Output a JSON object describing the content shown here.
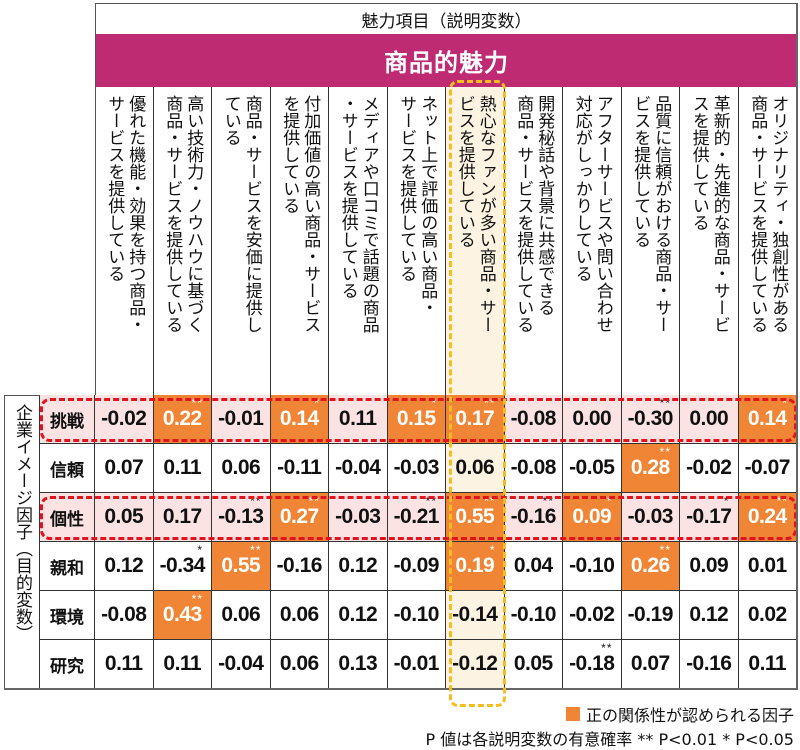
{
  "header": {
    "title": "魅力項目（説明変数）",
    "category": "商品的魅力"
  },
  "row_group_label": "企業イメージ因子（目的変数）",
  "columns": [
    "優れた機能・効果を持つ商品・サービスを提供している",
    "高い技術力・ノウハウに基づく商品・サービスを提供している",
    "商品・サービスを安価に提供している",
    "付加価値の高い商品・サービスを提供している",
    "メディアや口コミで話題の商品・サービスを提供している",
    "ネット上で評価の高い商品・サービスを提供している",
    "熱心なファンが多い商品・サービスを提供している",
    "開発秘話や背景に共感できる商品・サービスを提供している",
    "アフターサービスや問い合わせ対応がしっかりしている",
    "品質に信頼がおける商品・サービスを提供している",
    "革新的・先進的な商品・サービスを提供している",
    "オリジナリティ・独創性がある商品・サービスを提供している"
  ],
  "columns_vertical": [
    "優れた機能・効果を持つ商品・\nサービスを提供している",
    "高い技術力・ノウハウに基づく\n商品・サービスを提供している",
    "商品・サービスを安価に提供し\nている",
    "付加価値の高い商品・サービス\nを提供している",
    "メディアや口コミで話題の商品\n・サービスを提供している",
    "ネット上で評価の高い商品・\nサービスを提供している",
    "熱心なファンが多い商品・サー\nビスを提供している",
    "開発秘話や背景に共感できる\n商品・サービスを提供している",
    "アフターサービスや問い合わせ\n対応がしっかりしている",
    "品質に信頼がおける商品・サー\nビスを提供している",
    "革新的・先進的な商品・サービ\nスを提供している",
    "オリジナリティ・独創性がある\n商品・サービスを提供している"
  ],
  "rows": [
    {
      "label": "挑戦",
      "highlighted": true,
      "values": [
        "-0.02",
        "0.22",
        "-0.01",
        "0.14",
        "0.11",
        "0.15",
        "0.17",
        "-0.08",
        "0.00",
        "-0.30",
        "0.00",
        "0.14"
      ],
      "sig": [
        "",
        "**",
        "",
        "*",
        "",
        "*",
        "**",
        "",
        "",
        "**",
        "",
        "*"
      ],
      "positive": [
        false,
        true,
        false,
        true,
        false,
        true,
        true,
        false,
        false,
        false,
        false,
        true
      ]
    },
    {
      "label": "信頼",
      "highlighted": false,
      "values": [
        "0.07",
        "0.11",
        "0.06",
        "-0.11",
        "-0.04",
        "-0.03",
        "0.06",
        "-0.08",
        "-0.05",
        "0.28",
        "-0.02",
        "-0.07"
      ],
      "sig": [
        "",
        "",
        "",
        "",
        "",
        "",
        "",
        "",
        "",
        "**",
        "",
        ""
      ],
      "positive": [
        false,
        false,
        false,
        false,
        false,
        false,
        false,
        false,
        false,
        true,
        false,
        false
      ]
    },
    {
      "label": "個性",
      "highlighted": true,
      "values": [
        "0.05",
        "0.17",
        "-0.13",
        "0.27",
        "-0.03",
        "-0.21",
        "0.55",
        "-0.16",
        "0.09",
        "-0.03",
        "-0.17",
        "0.24"
      ],
      "sig": [
        "",
        "",
        "**",
        "**",
        "",
        "**",
        "**",
        "**",
        "*",
        "",
        "*",
        "**"
      ],
      "positive": [
        false,
        false,
        false,
        true,
        false,
        false,
        true,
        false,
        true,
        false,
        false,
        true
      ]
    },
    {
      "label": "親和",
      "highlighted": false,
      "values": [
        "0.12",
        "-0.34",
        "0.55",
        "-0.16",
        "0.12",
        "-0.09",
        "0.19",
        "0.04",
        "-0.10",
        "0.26",
        "0.09",
        "0.01"
      ],
      "sig": [
        "",
        "*",
        "**",
        "",
        "",
        "",
        "*",
        "",
        "",
        "**",
        "",
        ""
      ],
      "positive": [
        false,
        false,
        true,
        false,
        false,
        false,
        true,
        false,
        false,
        true,
        false,
        false
      ]
    },
    {
      "label": "環境",
      "highlighted": false,
      "values": [
        "-0.08",
        "0.43",
        "0.06",
        "0.06",
        "0.12",
        "-0.10",
        "-0.14",
        "-0.10",
        "-0.02",
        "-0.19",
        "0.12",
        "0.02"
      ],
      "sig": [
        "",
        "**",
        "",
        "",
        "",
        "",
        "",
        "",
        "",
        "",
        "",
        ""
      ],
      "positive": [
        false,
        true,
        false,
        false,
        false,
        false,
        false,
        false,
        false,
        false,
        false,
        false
      ]
    },
    {
      "label": "研究",
      "highlighted": false,
      "values": [
        "0.11",
        "0.11",
        "-0.04",
        "0.06",
        "0.13",
        "-0.01",
        "-0.12",
        "0.05",
        "-0.18",
        "0.07",
        "-0.16",
        "0.11"
      ],
      "sig": [
        "",
        "",
        "",
        "",
        "",
        "",
        "",
        "",
        "**",
        "",
        "",
        ""
      ],
      "positive": [
        false,
        false,
        false,
        false,
        false,
        false,
        false,
        false,
        false,
        false,
        false,
        false
      ]
    }
  ],
  "highlighted_column_index": 6,
  "legend": {
    "positive_label": "正の関係性が認められる因子",
    "note": "P 値は各説明変数の有意確率 ** P<0.01 * P<0.05"
  },
  "colors": {
    "band": "#be2b72",
    "positive": "#f08535",
    "row_highlight_fill": "#fbe3e4",
    "row_highlight_outline": "#e0141e",
    "column_highlight_fill": "#fdf3e2",
    "column_highlight_outline": "#f5bd1f"
  },
  "chart_data": {
    "type": "table",
    "title": "魅力項目（説明変数） — 商品的魅力",
    "xlabel": "魅力項目（説明変数）",
    "ylabel": "企業イメージ因子（目的変数）",
    "categories": [
      "優れた機能・効果を持つ商品・サービスを提供している",
      "高い技術力・ノウハウに基づく商品・サービスを提供している",
      "商品・サービスを安価に提供している",
      "付加価値の高い商品・サービスを提供している",
      "メディアや口コミで話題の商品・サービスを提供している",
      "ネット上で評価の高い商品・サービスを提供している",
      "熱心なファンが多い商品・サービスを提供している",
      "開発秘話や背景に共感できる商品・サービスを提供している",
      "アフターサービスや問い合わせ対応がしっかりしている",
      "品質に信頼がおける商品・サービスを提供している",
      "革新的・先進的な商品・サービスを提供している",
      "オリジナリティ・独創性がある商品・サービスを提供している"
    ],
    "series": [
      {
        "name": "挑戦",
        "values": [
          -0.02,
          0.22,
          -0.01,
          0.14,
          0.11,
          0.15,
          0.17,
          -0.08,
          0.0,
          -0.3,
          0.0,
          0.14
        ],
        "significance": [
          "",
          "**",
          "",
          "*",
          "",
          "*",
          "**",
          "",
          "",
          "**",
          "",
          "*"
        ]
      },
      {
        "name": "信頼",
        "values": [
          0.07,
          0.11,
          0.06,
          -0.11,
          -0.04,
          -0.03,
          0.06,
          -0.08,
          -0.05,
          0.28,
          -0.02,
          -0.07
        ],
        "significance": [
          "",
          "",
          "",
          "",
          "",
          "",
          "",
          "",
          "",
          "**",
          "",
          ""
        ]
      },
      {
        "name": "個性",
        "values": [
          0.05,
          0.17,
          -0.13,
          0.27,
          -0.03,
          -0.21,
          0.55,
          -0.16,
          0.09,
          -0.03,
          -0.17,
          0.24
        ],
        "significance": [
          "",
          "",
          "**",
          "**",
          "",
          "**",
          "**",
          "**",
          "*",
          "",
          "*",
          "**"
        ]
      },
      {
        "name": "親和",
        "values": [
          0.12,
          -0.34,
          0.55,
          -0.16,
          0.12,
          -0.09,
          0.19,
          0.04,
          -0.1,
          0.26,
          0.09,
          0.01
        ],
        "significance": [
          "",
          "*",
          "**",
          "",
          "",
          "",
          "*",
          "",
          "",
          "**",
          "",
          ""
        ]
      },
      {
        "name": "環境",
        "values": [
          -0.08,
          0.43,
          0.06,
          0.06,
          0.12,
          -0.1,
          -0.14,
          -0.1,
          -0.02,
          -0.19,
          0.12,
          0.02
        ],
        "significance": [
          "",
          "**",
          "",
          "",
          "",
          "",
          "",
          "",
          "",
          "",
          "",
          ""
        ]
      },
      {
        "name": "研究",
        "values": [
          0.11,
          0.11,
          -0.04,
          0.06,
          0.13,
          -0.01,
          -0.12,
          0.05,
          -0.18,
          0.07,
          -0.16,
          0.11
        ],
        "significance": [
          "",
          "",
          "",
          "",
          "",
          "",
          "",
          "",
          "**",
          "",
          "",
          ""
        ]
      }
    ],
    "legend": [
      "正の関係性が認められる因子"
    ],
    "annotations": [
      "P 値は各説明変数の有意確率 ** P<0.01 * P<0.05"
    ],
    "highlights": {
      "rows": [
        "挑戦",
        "個性"
      ],
      "column": "熱心なファンが多い商品・サービスを提供している"
    }
  }
}
